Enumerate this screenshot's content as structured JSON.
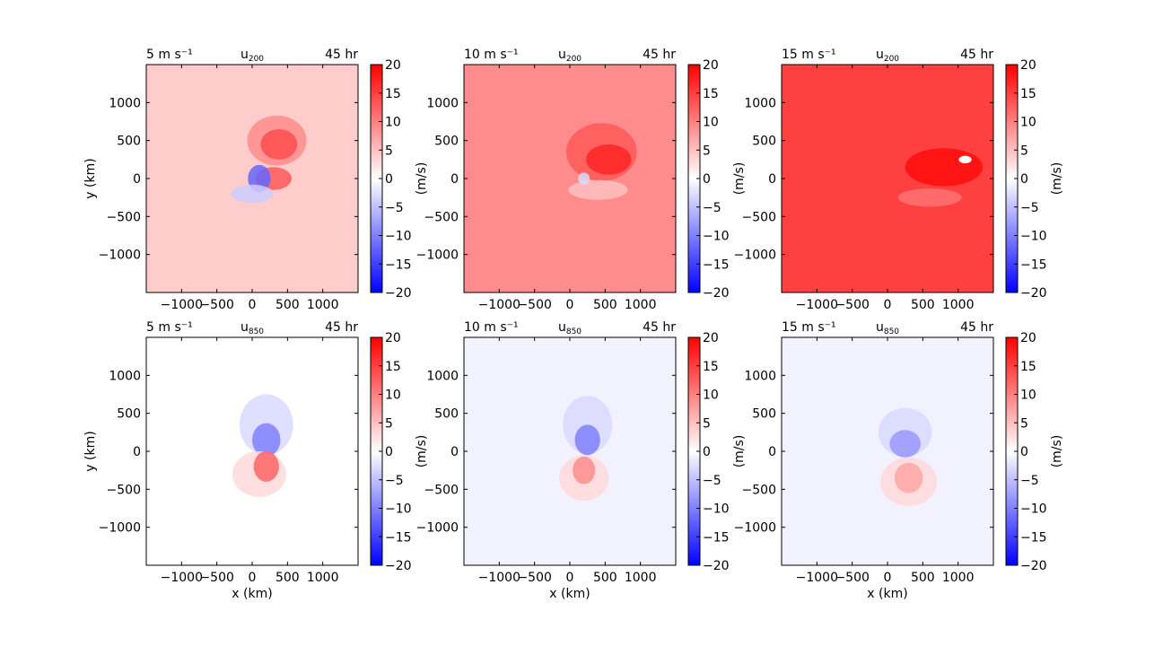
{
  "figure": {
    "time_label": "45 hr",
    "colorbar": {
      "label": "(m/s)",
      "min": -20,
      "max": 20,
      "ticks": [
        20,
        15,
        10,
        5,
        0,
        -5,
        -10,
        -15,
        -20
      ],
      "cmap": "bwr"
    }
  },
  "chart_data": [
    {
      "type": "heatmap",
      "title_left": "5 m s⁻¹",
      "title_center": "u",
      "title_center_sub": "200",
      "title_right": "45 hr",
      "xlabel": "",
      "ylabel": "y (km)",
      "xlim": [
        -1500,
        1500
      ],
      "ylim": [
        -1500,
        1500
      ],
      "xticks": [
        -1000,
        -500,
        0,
        500,
        1000
      ],
      "yticks": [
        1000,
        500,
        0,
        -500,
        -1000
      ],
      "background_value": 4,
      "features": [
        {
          "x": 350,
          "y": 500,
          "rx": 420,
          "ry": 330,
          "value": 9
        },
        {
          "x": 380,
          "y": 450,
          "rx": 260,
          "ry": 200,
          "value": 14
        },
        {
          "x": 300,
          "y": 0,
          "rx": 260,
          "ry": 150,
          "value": 13
        },
        {
          "x": 100,
          "y": 0,
          "rx": 160,
          "ry": 180,
          "value": -12
        },
        {
          "x": 0,
          "y": -200,
          "rx": 300,
          "ry": 120,
          "value": -4
        }
      ]
    },
    {
      "type": "heatmap",
      "title_left": "10 m s⁻¹",
      "title_center": "u",
      "title_center_sub": "200",
      "title_right": "45 hr",
      "xlabel": "",
      "ylabel": "",
      "xlim": [
        -1500,
        1500
      ],
      "ylim": [
        -1500,
        1500
      ],
      "xticks": [
        -1000,
        -500,
        0,
        500,
        1000
      ],
      "yticks": [
        1000,
        500,
        0,
        -500,
        -1000
      ],
      "background_value": 9,
      "features": [
        {
          "x": 450,
          "y": 350,
          "rx": 500,
          "ry": 380,
          "value": 13
        },
        {
          "x": 550,
          "y": 250,
          "rx": 320,
          "ry": 200,
          "value": 17
        },
        {
          "x": 400,
          "y": -150,
          "rx": 420,
          "ry": 130,
          "value": 5
        },
        {
          "x": 200,
          "y": 0,
          "rx": 80,
          "ry": 80,
          "value": -3
        }
      ]
    },
    {
      "type": "heatmap",
      "title_left": "15 m s⁻¹",
      "title_center": "u",
      "title_center_sub": "200",
      "title_right": "45 hr",
      "xlabel": "",
      "ylabel": "",
      "xlim": [
        -1500,
        1500
      ],
      "ylim": [
        -1500,
        1500
      ],
      "xticks": [
        -1000,
        -500,
        0,
        500,
        1000
      ],
      "yticks": [
        1000,
        500,
        0,
        -500,
        -1000
      ],
      "background_value": 15,
      "features": [
        {
          "x": 800,
          "y": 150,
          "rx": 550,
          "ry": 250,
          "value": 19
        },
        {
          "x": 600,
          "y": -250,
          "rx": 450,
          "ry": 120,
          "value": 11
        },
        {
          "x": 1100,
          "y": 250,
          "rx": 90,
          "ry": 50,
          "value": null
        }
      ]
    },
    {
      "type": "heatmap",
      "title_left": "5 m s⁻¹",
      "title_center": "u",
      "title_center_sub": "850",
      "title_right": "45 hr",
      "xlabel": "x (km)",
      "ylabel": "y (km)",
      "xlim": [
        -1500,
        1500
      ],
      "ylim": [
        -1500,
        1500
      ],
      "xticks": [
        -1000,
        -500,
        0,
        500,
        1000
      ],
      "yticks": [
        1000,
        500,
        0,
        -500,
        -1000
      ],
      "background_value": 0,
      "features": [
        {
          "x": 200,
          "y": 350,
          "rx": 380,
          "ry": 400,
          "value": -3
        },
        {
          "x": 200,
          "y": 150,
          "rx": 200,
          "ry": 220,
          "value": -10
        },
        {
          "x": 100,
          "y": -300,
          "rx": 380,
          "ry": 300,
          "value": 3
        },
        {
          "x": 200,
          "y": -200,
          "rx": 180,
          "ry": 200,
          "value": 12
        }
      ]
    },
    {
      "type": "heatmap",
      "title_left": "10 m s⁻¹",
      "title_center": "u",
      "title_center_sub": "850",
      "title_right": "45 hr",
      "xlabel": "x (km)",
      "ylabel": "",
      "xlim": [
        -1500,
        1500
      ],
      "ylim": [
        -1500,
        1500
      ],
      "xticks": [
        -1000,
        -500,
        0,
        500,
        1000
      ],
      "yticks": [
        1000,
        500,
        0,
        -500,
        -1000
      ],
      "background_value": -1,
      "features": [
        {
          "x": 250,
          "y": 350,
          "rx": 350,
          "ry": 380,
          "value": -3
        },
        {
          "x": 250,
          "y": 150,
          "rx": 180,
          "ry": 200,
          "value": -10
        },
        {
          "x": 200,
          "y": -350,
          "rx": 350,
          "ry": 300,
          "value": 3
        },
        {
          "x": 200,
          "y": -250,
          "rx": 160,
          "ry": 180,
          "value": 9
        }
      ]
    },
    {
      "type": "heatmap",
      "title_left": "15 m s⁻¹",
      "title_center": "u",
      "title_center_sub": "850",
      "title_right": "45 hr",
      "xlabel": "x (km)",
      "ylabel": "",
      "xlim": [
        -1500,
        1500
      ],
      "ylim": [
        -1500,
        1500
      ],
      "xticks": [
        -1000,
        -500,
        0,
        500,
        1000
      ],
      "yticks": [
        1000,
        500,
        0,
        -500,
        -1000
      ],
      "background_value": -1,
      "features": [
        {
          "x": 250,
          "y": 250,
          "rx": 380,
          "ry": 320,
          "value": -3
        },
        {
          "x": 250,
          "y": 100,
          "rx": 220,
          "ry": 180,
          "value": -8
        },
        {
          "x": 300,
          "y": -400,
          "rx": 400,
          "ry": 320,
          "value": 3
        },
        {
          "x": 300,
          "y": -350,
          "rx": 200,
          "ry": 200,
          "value": 7
        }
      ]
    }
  ]
}
